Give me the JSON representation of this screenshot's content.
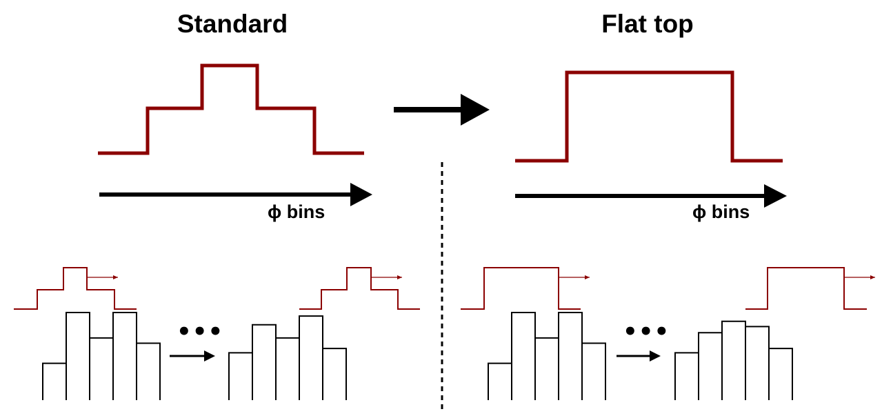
{
  "left_panel": {
    "title": "Standard",
    "axis_label": "ϕ bins",
    "ellipsis": "•••"
  },
  "right_panel": {
    "title": "Flat top",
    "axis_label": "ϕ bins",
    "ellipsis": "•••"
  },
  "colors": {
    "kernel": "#8b0000",
    "stroke": "#000000",
    "background": "#ffffff"
  },
  "histograms": {
    "input": [
      0.42,
      1.0,
      0.71,
      1.0,
      0.65
    ],
    "standard_output": [
      0.54,
      0.86,
      0.71,
      0.96,
      0.59
    ],
    "flattop_output": [
      0.54,
      0.77,
      0.9,
      0.84,
      0.59
    ]
  }
}
